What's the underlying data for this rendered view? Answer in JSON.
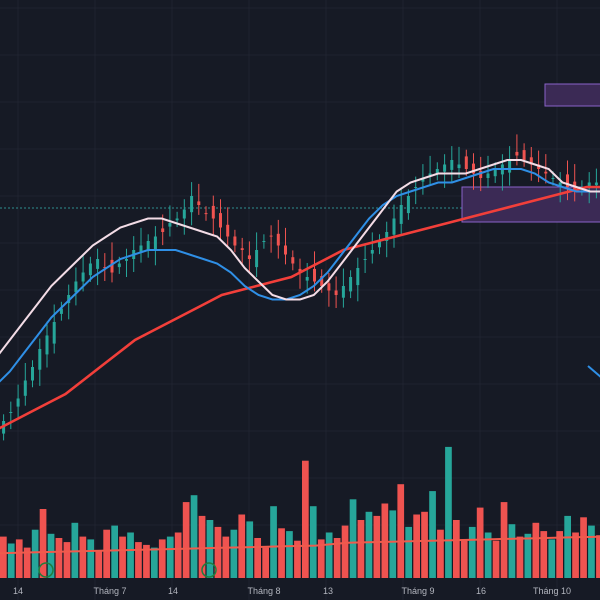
{
  "colors": {
    "background": "#161a25",
    "grid": "#1f2330",
    "candle_up": "#26a69a",
    "candle_down": "#ef5350",
    "ma_fast": "#f3dce6",
    "ma_mid": "#2f8fe6",
    "ma_slow": "#f23f3a",
    "vol_ma": "#f05a4c",
    "zone_fill": "#3b2a55",
    "zone_border": "#8a63c9",
    "hline": "#2f8f8f"
  },
  "chart_data": {
    "type": "candlestick",
    "x_axis": {
      "tick_labels": [
        "14",
        "Tháng 7",
        "14",
        "Tháng 8",
        "13",
        "Tháng 9",
        "16",
        "Tháng 10"
      ]
    },
    "price_range": [
      0,
      100
    ],
    "volume_range": [
      0,
      100
    ],
    "grid": true,
    "candles_close": [
      22,
      24,
      27,
      31,
      34,
      38,
      41,
      44,
      47,
      50,
      53,
      55,
      57,
      58,
      56,
      55,
      57,
      58,
      60,
      61,
      62,
      63,
      64,
      66,
      67,
      69,
      72,
      70,
      68,
      67,
      65,
      63,
      61,
      60,
      58,
      60,
      62,
      63,
      61,
      59,
      57,
      55,
      54,
      53,
      52,
      51,
      50,
      52,
      54,
      56,
      58,
      60,
      62,
      64,
      67,
      70,
      72,
      74,
      76,
      77,
      78,
      79,
      80,
      79,
      78,
      77,
      76,
      77,
      78,
      79,
      80,
      81,
      80,
      79,
      78,
      77,
      76,
      75,
      74,
      73,
      74,
      75,
      75
    ],
    "ma_fast": [
      36,
      40,
      44,
      48,
      52,
      55,
      58,
      61,
      63,
      65,
      66,
      67,
      67,
      66,
      65,
      64,
      63,
      60,
      56,
      53,
      50,
      49,
      49,
      50,
      53,
      57,
      61,
      65,
      69,
      73,
      75,
      76,
      77,
      77,
      77,
      78,
      79,
      80,
      80,
      79,
      78,
      75,
      74,
      73,
      73
    ],
    "ma_mid": [
      30,
      33,
      37,
      41,
      45,
      48,
      51,
      54,
      56,
      58,
      59,
      60,
      60,
      60,
      59,
      58,
      57,
      55,
      52,
      50,
      49,
      49,
      50,
      52,
      55,
      59,
      63,
      67,
      70,
      72,
      73,
      74,
      75,
      75,
      76,
      77,
      78,
      78,
      78,
      77,
      75,
      74,
      73,
      73,
      73
    ],
    "ma_slow": [
      20,
      22,
      24,
      26,
      28,
      31,
      34,
      37,
      40,
      42,
      44,
      46,
      48,
      50,
      51,
      52,
      53,
      54,
      56,
      58,
      60,
      61,
      62,
      63,
      64,
      65,
      66,
      67,
      68,
      69,
      70,
      71,
      72,
      73,
      74,
      74
    ],
    "volumes": [
      30,
      25,
      28,
      22,
      35,
      50,
      32,
      29,
      26,
      40,
      30,
      28,
      20,
      35,
      38,
      30,
      33,
      26,
      24,
      22,
      28,
      30,
      33,
      55,
      60,
      45,
      42,
      37,
      30,
      35,
      46,
      41,
      29,
      22,
      52,
      36,
      34,
      27,
      85,
      52,
      28,
      33,
      29,
      38,
      57,
      42,
      48,
      45,
      54,
      49,
      68,
      37,
      46,
      48,
      63,
      35,
      95,
      42,
      28,
      37,
      51,
      33,
      27,
      55,
      39,
      30,
      32,
      40,
      34,
      28,
      34,
      45,
      33,
      44,
      38,
      31
    ]
  }
}
